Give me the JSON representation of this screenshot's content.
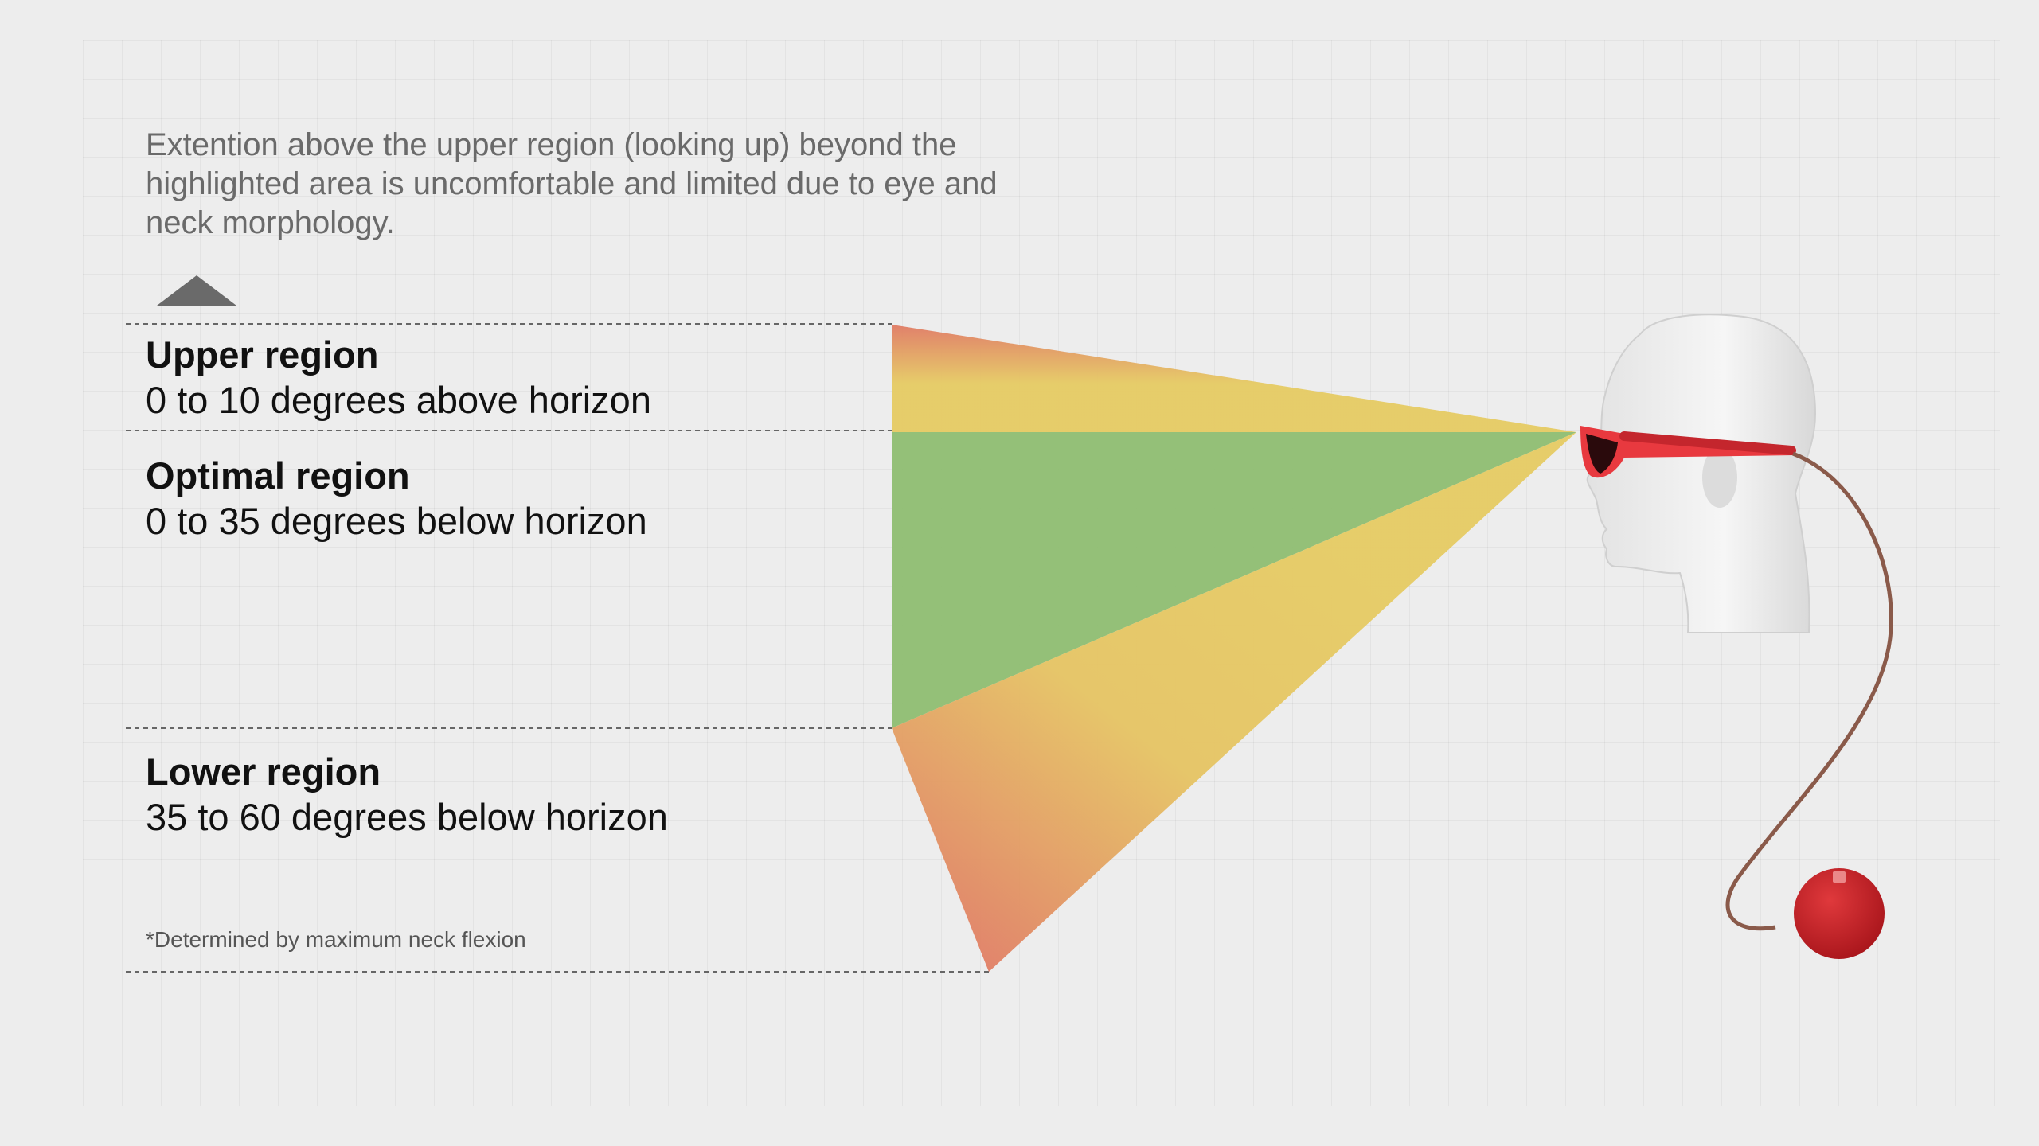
{
  "note": "Extention above the upper region (looking up) beyond the highlighted area is uncomfortable and limited due to eye and neck morphology.",
  "regions": {
    "upper": {
      "title": "Upper region",
      "description": "0 to 10 degrees above horizon"
    },
    "optimal": {
      "title": "Optimal region",
      "description": "0 to 35 degrees below horizon"
    },
    "lower": {
      "title": "Lower region",
      "description": "35 to 60 degrees below horizon"
    }
  },
  "footnote": "*Determined by maximum neck flexion",
  "colors": {
    "optimal": "#8fbe72",
    "acceptable": "#e6cb63",
    "limit": "#e07a64",
    "glasses": "#e8393f",
    "background": "#ededed"
  },
  "icons": {
    "arrow": "up-arrow-icon",
    "head": "mannequin-head-icon",
    "device": "red-puck-device-icon"
  }
}
